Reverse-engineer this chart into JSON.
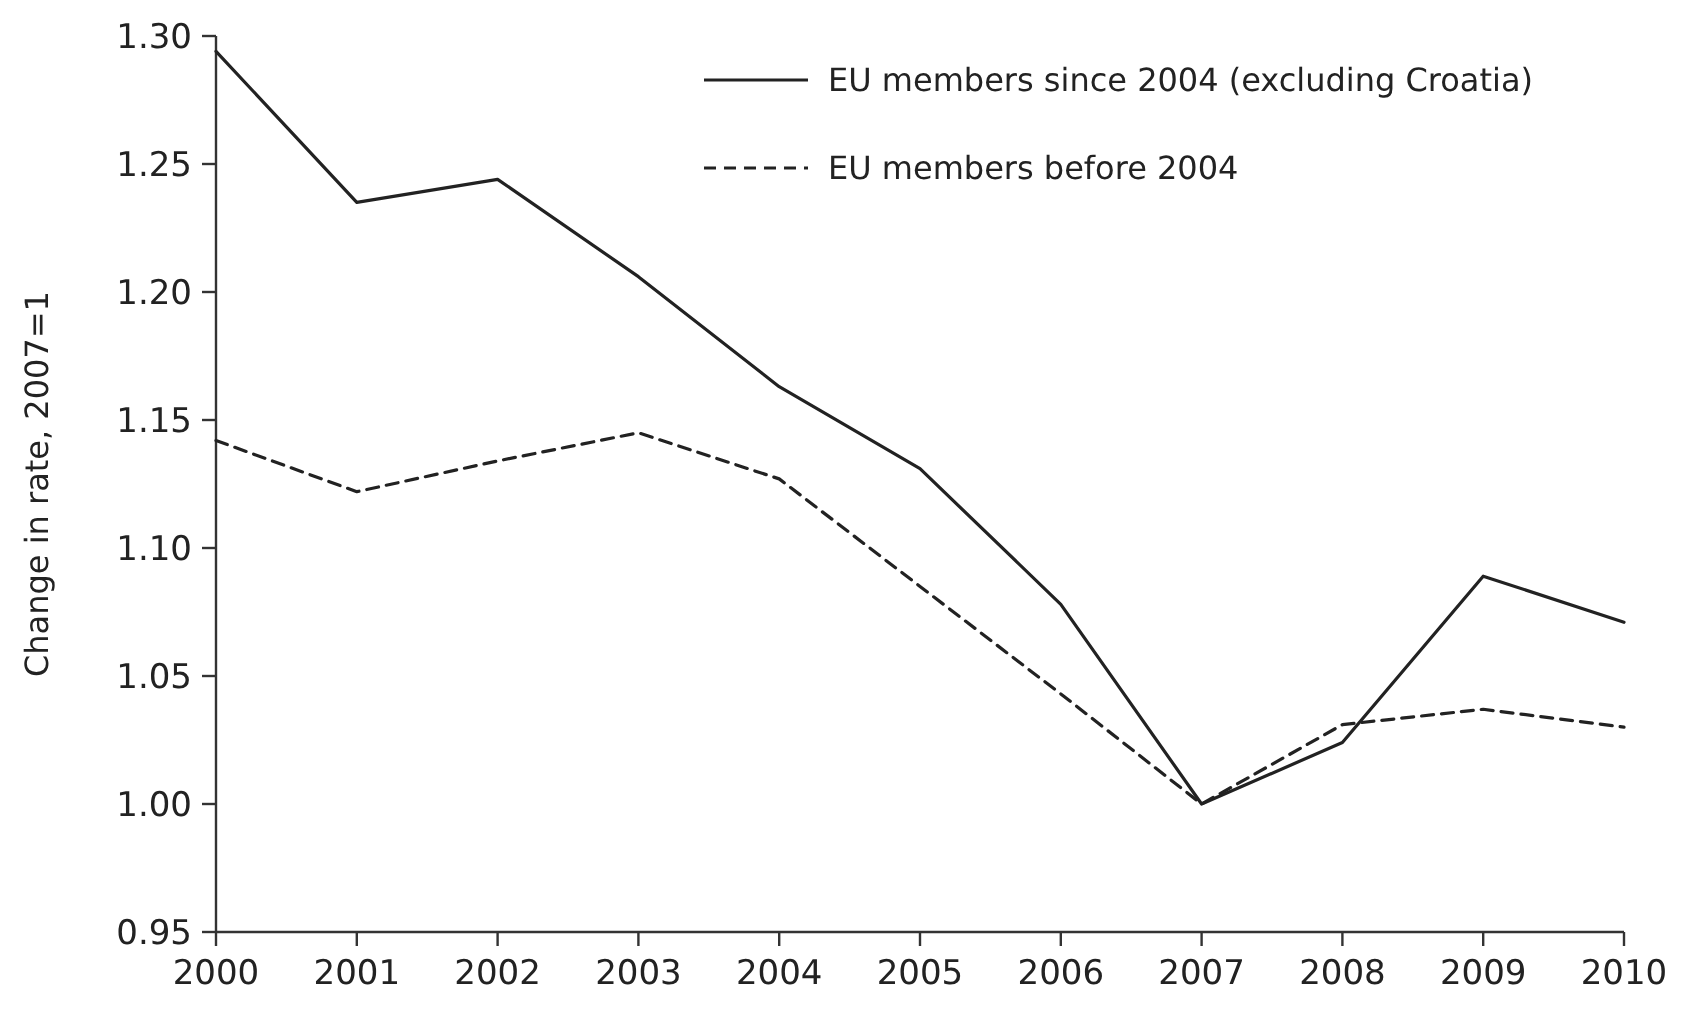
{
  "chart_data": {
    "type": "line",
    "ylabel": "Change in rate, 2007=1",
    "categories": [
      "2000",
      "2001",
      "2002",
      "2003",
      "2004",
      "2005",
      "2006",
      "2007",
      "2008",
      "2009",
      "2010"
    ],
    "series": [
      {
        "name": "EU members since 2004 (excluding Croatia)",
        "color": "#222222",
        "line_style": "solid",
        "values": [
          1.294,
          1.235,
          1.244,
          1.206,
          1.163,
          1.131,
          1.078,
          1.0,
          1.024,
          1.089,
          1.071
        ]
      },
      {
        "name": "EU members before 2004",
        "color": "#222222",
        "line_style": "dashed",
        "values": [
          1.142,
          1.122,
          1.134,
          1.145,
          1.127,
          1.085,
          1.043,
          1.0,
          1.031,
          1.037,
          1.03
        ]
      }
    ],
    "ylim": [
      0.95,
      1.3
    ],
    "yticks": [
      {
        "value": 0.95,
        "label": "0.95"
      },
      {
        "value": 1.0,
        "label": "1.00"
      },
      {
        "value": 1.05,
        "label": "1.05"
      },
      {
        "value": 1.1,
        "label": "1.10"
      },
      {
        "value": 1.15,
        "label": "1.15"
      },
      {
        "value": 1.2,
        "label": "1.20"
      },
      {
        "value": 1.25,
        "label": "1.25"
      },
      {
        "value": 1.3,
        "label": "1.30"
      }
    ],
    "grid": false,
    "legend": "top right",
    "marker": "none"
  }
}
